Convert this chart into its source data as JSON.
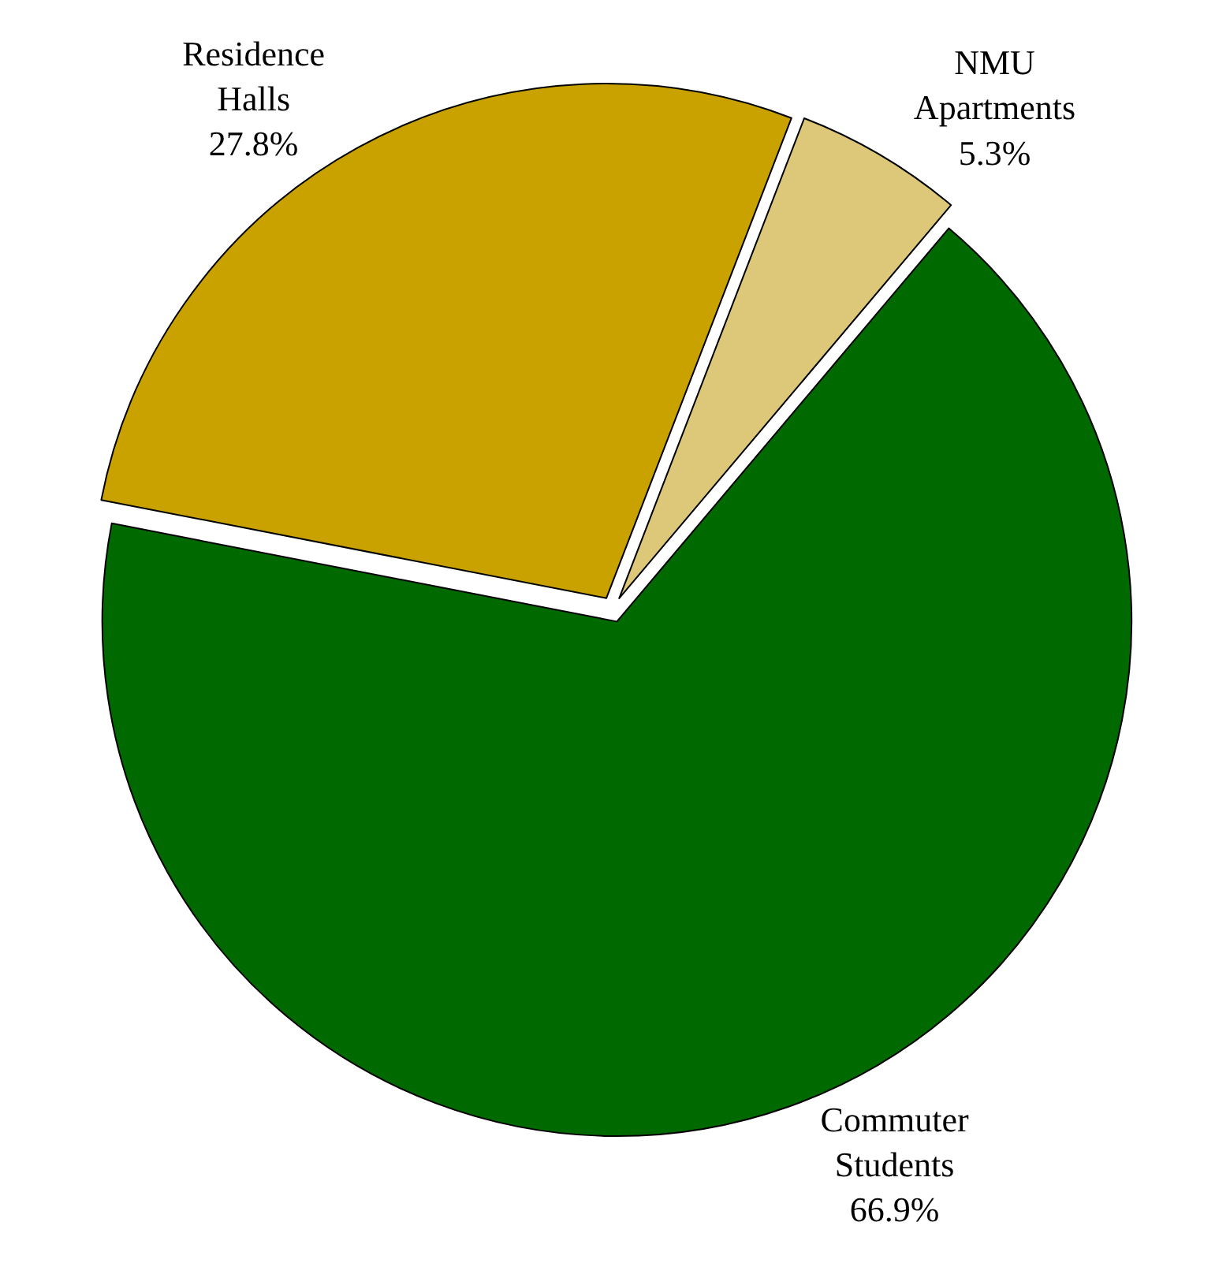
{
  "chart_data": {
    "type": "pie",
    "categories": [
      "Residence Halls",
      "NMU Apartments",
      "Commuter Students"
    ],
    "values": [
      27.8,
      5.3,
      66.9
    ],
    "colors": [
      "#c9a200",
      "#dcc878",
      "#006a00"
    ],
    "value_labels": [
      "27.8%",
      "5.3%",
      "66.9%"
    ],
    "legend": false
  }
}
